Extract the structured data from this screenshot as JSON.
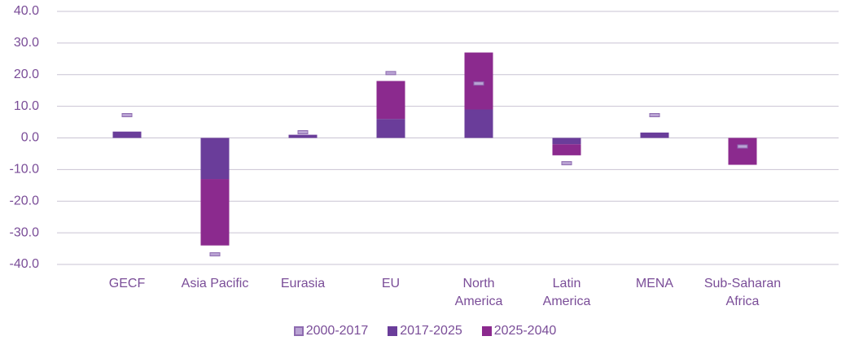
{
  "chart_data": {
    "type": "bar",
    "categories": [
      "GECF",
      "Asia Pacific",
      "Eurasia",
      "EU",
      "North\nAmerica",
      "Latin\nAmerica",
      "MENA",
      "Sub-Saharan\nAfrica"
    ],
    "series": [
      {
        "name": "2000-2017",
        "color": "#b9a3d3",
        "values": [
          7.2,
          -36.8,
          1.8,
          20.5,
          17.2,
          -8.0,
          7.2,
          -2.7
        ]
      },
      {
        "name": "2017-2025",
        "color": "#6a3d9a",
        "values": [
          2.0,
          -13.0,
          1.0,
          6.0,
          9.0,
          -2.0,
          1.7,
          0
        ]
      },
      {
        "name": "2025-2040",
        "color": "#8b2a8e",
        "values": [
          0,
          -21.0,
          0,
          12.0,
          18.0,
          -3.5,
          0,
          -8.5
        ]
      }
    ],
    "ylim": [
      -40,
      40
    ],
    "yticks": [
      {
        "value": -40,
        "label": "-40.0"
      },
      {
        "value": -30,
        "label": "-30.0"
      },
      {
        "value": -20,
        "label": "-20.0"
      },
      {
        "value": -10,
        "label": "-10.0"
      },
      {
        "value": 0,
        "label": "0.0"
      },
      {
        "value": 10,
        "label": "10.0"
      },
      {
        "value": 20,
        "label": "20.0"
      },
      {
        "value": 30,
        "label": "30.0"
      },
      {
        "value": 40,
        "label": "40.0"
      }
    ],
    "grid": true
  }
}
